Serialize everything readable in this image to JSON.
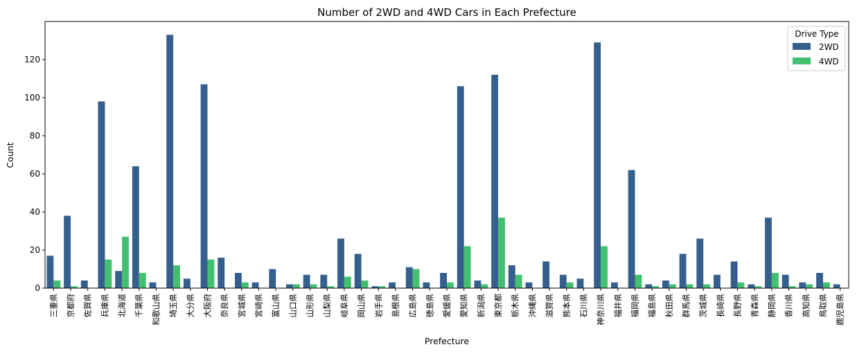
{
  "chart_data": {
    "type": "bar",
    "title": "Number of 2WD and 4WD Cars in Each Prefecture",
    "xlabel": "Prefecture",
    "ylabel": "Count",
    "ylim": [
      0,
      140
    ],
    "yticks": [
      0,
      20,
      40,
      60,
      80,
      100,
      120
    ],
    "grid": false,
    "legend": {
      "title": "Drive Type",
      "placement": "top-right"
    },
    "categories": [
      "三重県",
      "京都府",
      "佐賀県",
      "兵庫県",
      "北海道",
      "千葉県",
      "和歌山県",
      "埼玉県",
      "大分県",
      "大阪府",
      "奈良県",
      "宮城県",
      "宮崎県",
      "富山県",
      "山口県",
      "山形県",
      "山梨県",
      "岐阜県",
      "岡山県",
      "岩手県",
      "島根県",
      "広島県",
      "徳島県",
      "愛媛県",
      "愛知県",
      "新潟県",
      "東京都",
      "栃木県",
      "沖縄県",
      "滋賀県",
      "熊本県",
      "石川県",
      "神奈川県",
      "福井県",
      "福岡県",
      "福島県",
      "秋田県",
      "群馬県",
      "茨城県",
      "長崎県",
      "長野県",
      "青森県",
      "静岡県",
      "香川県",
      "高知県",
      "鳥取県",
      "鹿児島県"
    ],
    "series": [
      {
        "name": "2WD",
        "color": "#355f8d",
        "values": [
          17,
          38,
          4,
          98,
          9,
          64,
          3,
          133,
          5,
          107,
          16,
          8,
          3,
          10,
          2,
          7,
          7,
          26,
          18,
          1,
          3,
          11,
          3,
          8,
          106,
          4,
          112,
          12,
          3,
          14,
          7,
          5,
          129,
          3,
          62,
          2,
          4,
          18,
          26,
          7,
          14,
          2,
          37,
          7,
          3,
          8,
          2
        ]
      },
      {
        "name": "4WD",
        "color": "#44bf70",
        "values": [
          4,
          1,
          0,
          15,
          27,
          8,
          0,
          12,
          0,
          15,
          0,
          3,
          0,
          0,
          2,
          2,
          1,
          6,
          4,
          1,
          0,
          10,
          0,
          3,
          22,
          2,
          37,
          7,
          0,
          0,
          3,
          0,
          22,
          0,
          7,
          1,
          2,
          2,
          2,
          0,
          3,
          1,
          8,
          1,
          2,
          3,
          0
        ]
      }
    ]
  }
}
